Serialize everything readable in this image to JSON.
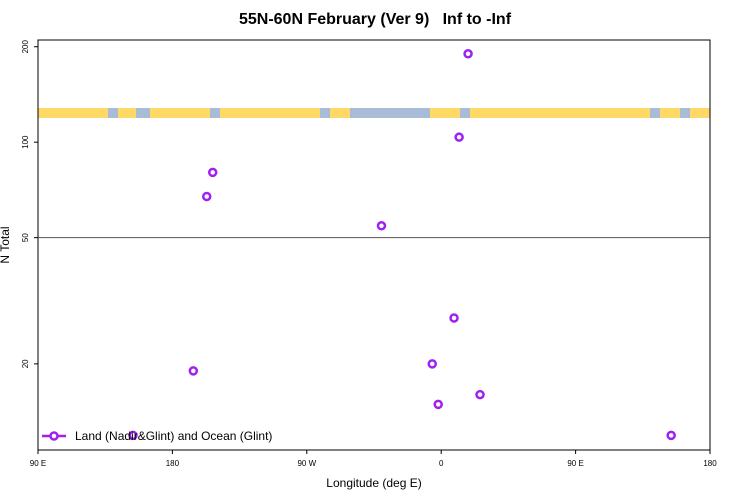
{
  "chart_data": {
    "type": "scatter",
    "title": "55N-60N February (Ver 9)   Inf to -Inf",
    "xlabel": "Longitude (deg E)",
    "ylabel": "N Total",
    "log_y": true,
    "xlim": [
      90,
      540
    ],
    "ylim": [
      10.7,
      210
    ],
    "xticks": [
      {
        "value": 90,
        "label": "90 E"
      },
      {
        "value": 180,
        "label": "180"
      },
      {
        "value": 270,
        "label": "90 W"
      },
      {
        "value": 360,
        "label": "0"
      },
      {
        "value": 450,
        "label": "90 E"
      },
      {
        "value": 540,
        "label": "180"
      }
    ],
    "yticks": [
      20,
      50,
      100,
      200
    ],
    "reference_line": 50,
    "legend": "bottom-left",
    "series": [
      {
        "name": "Land (Nadir&Glint) and Ocean (Glint)",
        "color": "#a020f0",
        "x": [
          378,
          372,
          207,
          203,
          320,
          368.6,
          354,
          194,
          386,
          358,
          153.6,
          514
        ],
        "values": [
          190,
          103.7,
          80.3,
          67.4,
          54.5,
          27.9,
          20,
          19.0,
          16.0,
          14.9,
          11.9,
          11.9
        ]
      }
    ]
  }
}
